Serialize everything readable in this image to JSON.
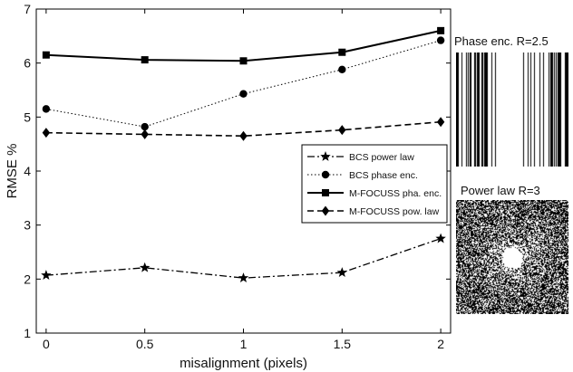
{
  "chart_data": {
    "type": "line",
    "title": "",
    "xlabel": "misalignment (pixels)",
    "ylabel": "RMSE %",
    "x": [
      0,
      0.5,
      1,
      1.5,
      2
    ],
    "xticks": [
      "0",
      "0.5",
      "1",
      "1.5",
      "2"
    ],
    "yticks": [
      "1",
      "2",
      "3",
      "4",
      "5",
      "6",
      "7"
    ],
    "xlim": [
      -0.05,
      2.05
    ],
    "ylim": [
      1,
      7
    ],
    "grid": false,
    "legend_position": "center-right",
    "series": [
      {
        "name": "BCS power law",
        "values": [
          2.07,
          2.21,
          2.02,
          2.12,
          2.75
        ],
        "marker": "star",
        "dash": "dash-dot",
        "color": "#000000"
      },
      {
        "name": "BCS phase enc.",
        "values": [
          5.15,
          4.82,
          5.43,
          5.88,
          6.42
        ],
        "marker": "circle",
        "dash": "dotted",
        "color": "#000000"
      },
      {
        "name": "M-FOCUSS pha. enc.",
        "values": [
          6.15,
          6.06,
          6.04,
          6.2,
          6.6
        ],
        "marker": "square",
        "dash": "solid",
        "color": "#000000"
      },
      {
        "name": "M-FOCUSS pow. law",
        "values": [
          4.71,
          4.68,
          4.65,
          4.76,
          4.91
        ],
        "marker": "diamond",
        "dash": "dashed",
        "color": "#000000"
      }
    ]
  },
  "panels": {
    "phase_title": "Phase enc. R=2.5",
    "power_title": "Power law R=3"
  }
}
